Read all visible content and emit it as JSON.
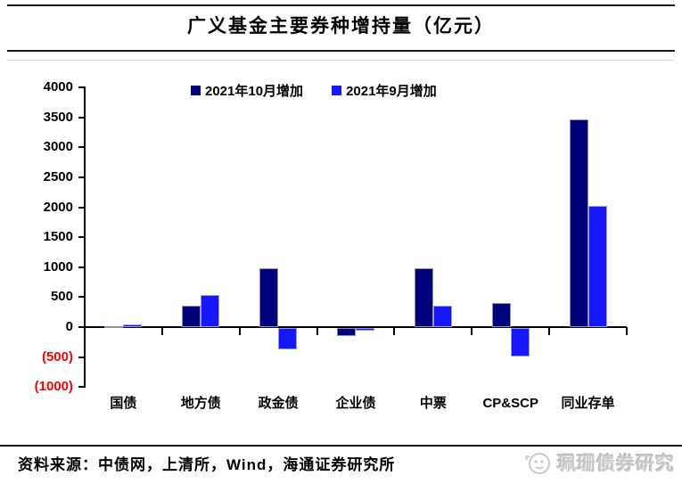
{
  "title": "广义基金主要券种增持量（亿元）",
  "legend": [
    {
      "label": "2021年10月增加",
      "color": "#00007d"
    },
    {
      "label": "2021年9月增加",
      "color": "#1717ff"
    }
  ],
  "footer": {
    "source": "资料来源：中债网，上清所，Wind，海通证券研究所"
  },
  "watermark": {
    "text": "珮珊债券研究",
    "icon": "face-logo-icon"
  },
  "chart_data": {
    "type": "bar",
    "title": "广义基金主要券种增持量（亿元）",
    "categories": [
      "国债",
      "地方债",
      "政金债",
      "企业债",
      "中票",
      "CP&SCP",
      "同业存单"
    ],
    "series": [
      {
        "name": "2021年10月增加",
        "color": "#00007d",
        "values": [
          10,
          360,
          980,
          -140,
          980,
          400,
          3470
        ]
      },
      {
        "name": "2021年9月增加",
        "color": "#1717ff",
        "values": [
          50,
          530,
          -360,
          -50,
          350,
          -480,
          2030
        ]
      }
    ],
    "ylabel": "",
    "xlabel": "",
    "ylim": [
      -1000,
      4000
    ],
    "ytick_step": 500,
    "yticks": [
      {
        "label": "4000",
        "value": 4000
      },
      {
        "label": "3500",
        "value": 3500
      },
      {
        "label": "3000",
        "value": 3000
      },
      {
        "label": "2500",
        "value": 2500
      },
      {
        "label": "2000",
        "value": 2000
      },
      {
        "label": "1500",
        "value": 1500
      },
      {
        "label": "1000",
        "value": 1000
      },
      {
        "label": "500",
        "value": 500
      },
      {
        "label": "0",
        "value": 0
      },
      {
        "label": "(500)",
        "value": -500
      },
      {
        "label": "(1000)",
        "value": -1000
      }
    ],
    "negative_tick_color": "#ff0000",
    "positive_tick_color": "#000000",
    "grid": false,
    "legend_position": "top"
  }
}
